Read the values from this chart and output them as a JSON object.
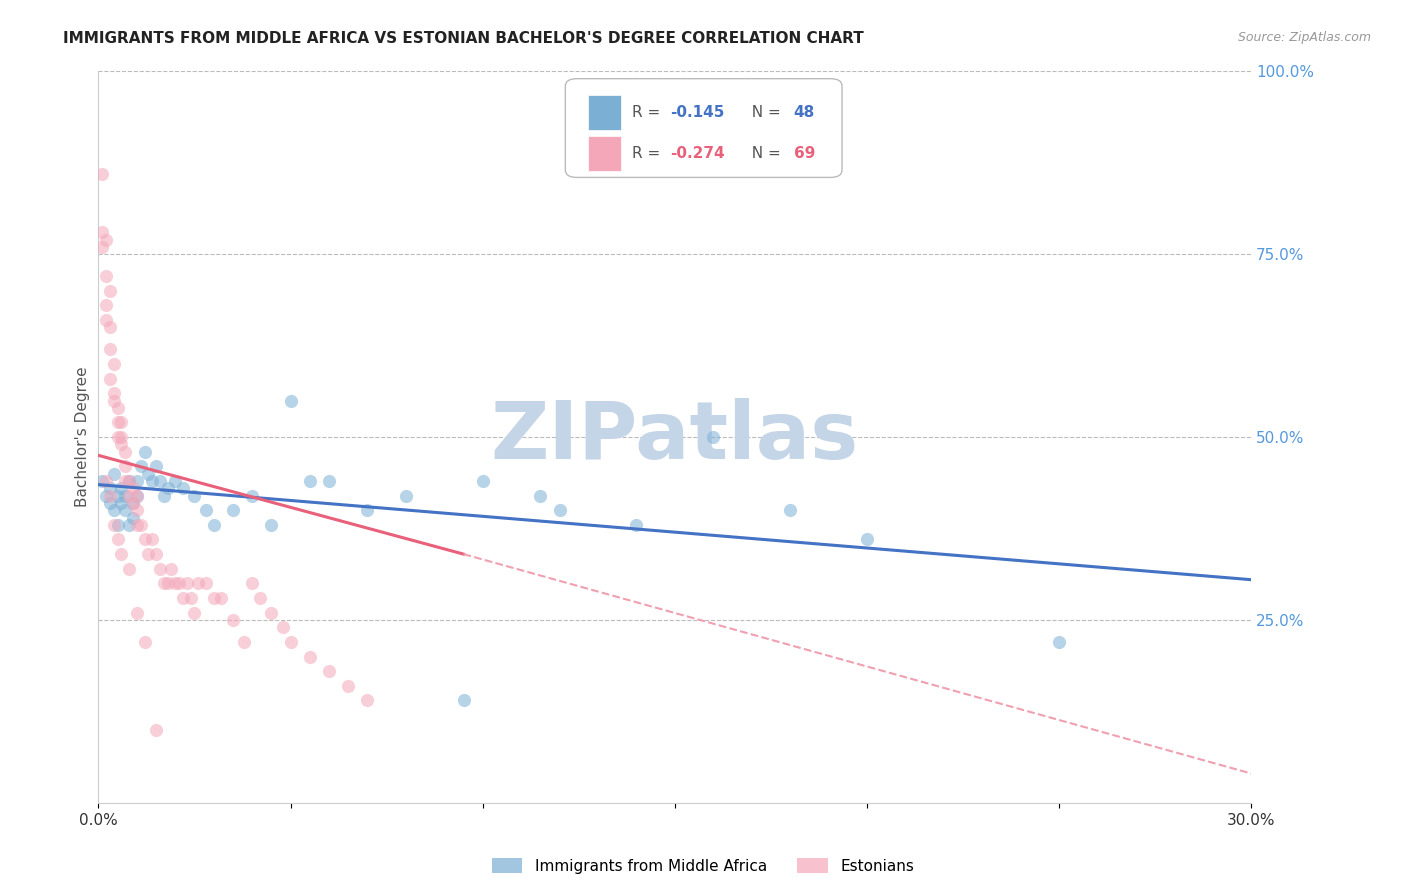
{
  "title": "IMMIGRANTS FROM MIDDLE AFRICA VS ESTONIAN BACHELOR'S DEGREE CORRELATION CHART",
  "source": "Source: ZipAtlas.com",
  "ylabel": "Bachelor's Degree",
  "x_min": 0.0,
  "x_max": 0.3,
  "y_min": 0.0,
  "y_max": 1.0,
  "x_ticks": [
    0.0,
    0.05,
    0.1,
    0.15,
    0.2,
    0.25,
    0.3
  ],
  "x_tick_labels": [
    "0.0%",
    "",
    "",
    "",
    "",
    "",
    "30.0%"
  ],
  "y_ticks_right": [
    0.25,
    0.5,
    0.75,
    1.0
  ],
  "y_tick_labels_right": [
    "25.0%",
    "50.0%",
    "75.0%",
    "100.0%"
  ],
  "legend_r1_prefix": "R = ",
  "legend_r1_val": "-0.145",
  "legend_n1_prefix": "  N = ",
  "legend_n1_val": "48",
  "legend_r2_prefix": "R = ",
  "legend_r2_val": "-0.274",
  "legend_n2_prefix": "  N = ",
  "legend_n2_val": "69",
  "blue_color": "#7BAFD4",
  "pink_color": "#F4A7B9",
  "line_blue_color": "#4472C4",
  "line_pink_color": "#E8607A",
  "line_pink_dash_color": "#F0A0B0",
  "watermark_text": "ZIPatlas",
  "watermark_color": "#C5D5E8",
  "blue_scatter_x": [
    0.001,
    0.002,
    0.003,
    0.003,
    0.004,
    0.004,
    0.005,
    0.005,
    0.006,
    0.006,
    0.007,
    0.007,
    0.008,
    0.008,
    0.009,
    0.009,
    0.01,
    0.01,
    0.011,
    0.012,
    0.013,
    0.014,
    0.015,
    0.016,
    0.017,
    0.018,
    0.02,
    0.022,
    0.025,
    0.028,
    0.03,
    0.035,
    0.04,
    0.045,
    0.05,
    0.06,
    0.07,
    0.08,
    0.1,
    0.12,
    0.14,
    0.16,
    0.18,
    0.2,
    0.25,
    0.055,
    0.095,
    0.115
  ],
  "blue_scatter_y": [
    0.44,
    0.42,
    0.41,
    0.43,
    0.4,
    0.45,
    0.42,
    0.38,
    0.41,
    0.43,
    0.4,
    0.42,
    0.38,
    0.44,
    0.39,
    0.41,
    0.42,
    0.44,
    0.46,
    0.48,
    0.45,
    0.44,
    0.46,
    0.44,
    0.42,
    0.43,
    0.44,
    0.43,
    0.42,
    0.4,
    0.38,
    0.4,
    0.42,
    0.38,
    0.55,
    0.44,
    0.4,
    0.42,
    0.44,
    0.4,
    0.38,
    0.5,
    0.4,
    0.36,
    0.22,
    0.44,
    0.14,
    0.42
  ],
  "pink_scatter_x": [
    0.001,
    0.001,
    0.001,
    0.002,
    0.002,
    0.002,
    0.002,
    0.003,
    0.003,
    0.003,
    0.003,
    0.004,
    0.004,
    0.004,
    0.005,
    0.005,
    0.005,
    0.006,
    0.006,
    0.006,
    0.007,
    0.007,
    0.007,
    0.008,
    0.008,
    0.009,
    0.009,
    0.01,
    0.01,
    0.01,
    0.011,
    0.012,
    0.013,
    0.014,
    0.015,
    0.016,
    0.017,
    0.018,
    0.019,
    0.02,
    0.021,
    0.022,
    0.023,
    0.024,
    0.025,
    0.026,
    0.028,
    0.03,
    0.032,
    0.035,
    0.038,
    0.04,
    0.042,
    0.045,
    0.048,
    0.05,
    0.055,
    0.06,
    0.065,
    0.07,
    0.002,
    0.003,
    0.004,
    0.005,
    0.006,
    0.008,
    0.01,
    0.012,
    0.015
  ],
  "pink_scatter_y": [
    0.86,
    0.78,
    0.76,
    0.77,
    0.72,
    0.68,
    0.66,
    0.7,
    0.65,
    0.62,
    0.58,
    0.6,
    0.56,
    0.55,
    0.52,
    0.54,
    0.5,
    0.49,
    0.52,
    0.5,
    0.46,
    0.48,
    0.44,
    0.44,
    0.42,
    0.43,
    0.41,
    0.42,
    0.4,
    0.38,
    0.38,
    0.36,
    0.34,
    0.36,
    0.34,
    0.32,
    0.3,
    0.3,
    0.32,
    0.3,
    0.3,
    0.28,
    0.3,
    0.28,
    0.26,
    0.3,
    0.3,
    0.28,
    0.28,
    0.25,
    0.22,
    0.3,
    0.28,
    0.26,
    0.24,
    0.22,
    0.2,
    0.18,
    0.16,
    0.14,
    0.44,
    0.42,
    0.38,
    0.36,
    0.34,
    0.32,
    0.26,
    0.22,
    0.1
  ],
  "blue_line_x0": 0.0,
  "blue_line_x1": 0.3,
  "blue_line_y0": 0.435,
  "blue_line_y1": 0.305,
  "pink_line_solid_x0": 0.0,
  "pink_line_solid_x1": 0.095,
  "pink_line_y0": 0.475,
  "pink_line_y1": 0.34,
  "pink_line_dash_x0": 0.095,
  "pink_line_dash_x1": 0.3,
  "pink_line_dash_y0": 0.34,
  "pink_line_dash_y1": 0.04
}
